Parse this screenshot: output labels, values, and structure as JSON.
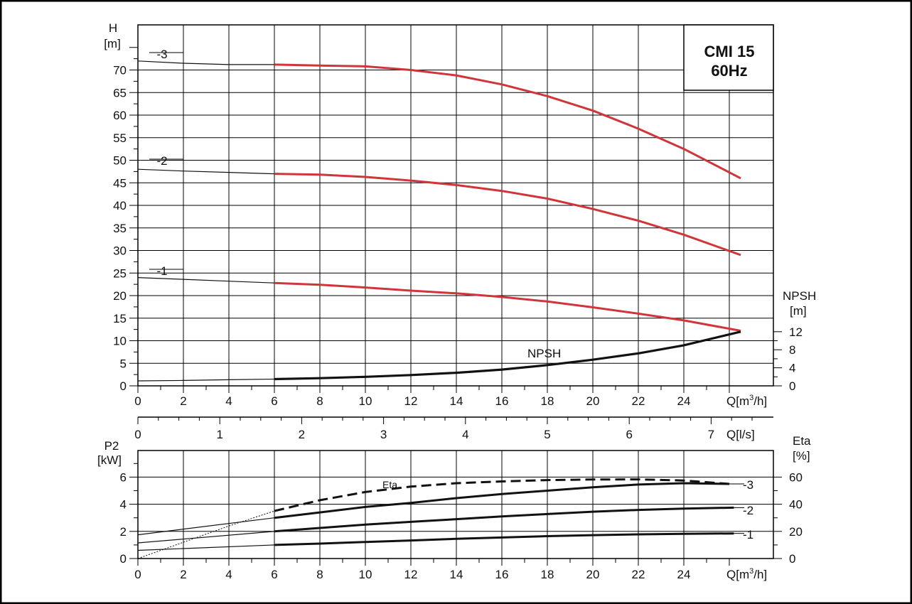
{
  "title_box": {
    "line1": "CMI 15",
    "line2": "60Hz"
  },
  "colors": {
    "head": "#d0353a",
    "ink": "#111111",
    "frame": "#000000"
  },
  "chart_data": [
    {
      "type": "line",
      "name": "head-npsh",
      "ylabel": "H",
      "yunit": "[m]",
      "xunit": "Q[m³/h]",
      "xlim": [
        0,
        26.5
      ],
      "ylim": [
        0,
        75
      ],
      "x_ticks": [
        0,
        2,
        4,
        6,
        8,
        10,
        12,
        14,
        16,
        18,
        20,
        22,
        24
      ],
      "y_ticks": [
        0,
        5,
        10,
        15,
        20,
        25,
        30,
        35,
        40,
        45,
        50,
        55,
        60,
        65,
        70
      ],
      "grid": true,
      "series": [
        {
          "name": "-3",
          "x": [
            6,
            8,
            10,
            12,
            14,
            16,
            18,
            20,
            22,
            24,
            26.5
          ],
          "values": [
            71.2,
            71.0,
            70.8,
            70.0,
            68.8,
            66.8,
            64.2,
            61.0,
            57.0,
            52.5,
            46.0
          ]
        },
        {
          "name": "-2",
          "x": [
            6,
            8,
            10,
            12,
            14,
            16,
            18,
            20,
            22,
            24,
            26.5
          ],
          "values": [
            47.0,
            46.8,
            46.3,
            45.5,
            44.5,
            43.2,
            41.5,
            39.2,
            36.6,
            33.5,
            29.0
          ]
        },
        {
          "name": "-1",
          "x": [
            6,
            8,
            10,
            12,
            14,
            16,
            18,
            20,
            22,
            24,
            26.5
          ],
          "values": [
            22.8,
            22.4,
            21.8,
            21.1,
            20.5,
            19.7,
            18.7,
            17.4,
            16.0,
            14.5,
            12.2
          ]
        }
      ],
      "extrapolated": {
        "-3": {
          "x": [
            0,
            2,
            4,
            6
          ],
          "values": [
            72.0,
            71.5,
            71.2,
            71.2
          ]
        },
        "-2": {
          "x": [
            0,
            2,
            4,
            6
          ],
          "values": [
            48.0,
            47.6,
            47.3,
            47.0
          ]
        },
        "-1": {
          "x": [
            0,
            2,
            4,
            6
          ],
          "values": [
            24.0,
            23.6,
            23.2,
            22.8
          ]
        }
      },
      "npsh": {
        "label": "NPSH",
        "axis_label": "NPSH",
        "axis_unit": "[m]",
        "axis_ticks": [
          0,
          4,
          8,
          12
        ],
        "x": [
          6,
          8,
          10,
          12,
          14,
          16,
          18,
          20,
          22,
          24,
          26.5
        ],
        "values": [
          1.5,
          1.7,
          2.0,
          2.4,
          2.9,
          3.6,
          4.6,
          5.8,
          7.2,
          9.0,
          12.0
        ],
        "extrapolated": {
          "x": [
            0,
            2,
            4,
            6
          ],
          "values": [
            1.1,
            1.2,
            1.35,
            1.5
          ]
        }
      },
      "series_tags": [
        "-3",
        "-2",
        "-1"
      ]
    },
    {
      "type": "axis",
      "name": "flow-litres",
      "xunit": "Q[l/s]",
      "x_ticks": [
        0,
        1,
        2,
        3,
        4,
        5,
        6,
        7
      ]
    },
    {
      "type": "line",
      "name": "power-efficiency",
      "ylabel": "P2",
      "yunit": "[kW]",
      "xunit": "Q[m³/h]",
      "xlim": [
        0,
        26.5
      ],
      "ylim": [
        0,
        7
      ],
      "x_ticks": [
        0,
        2,
        4,
        6,
        8,
        10,
        12,
        14,
        16,
        18,
        20,
        22,
        24
      ],
      "y_ticks": [
        0,
        2,
        4,
        6
      ],
      "grid": true,
      "series": [
        {
          "name": "-3",
          "x": [
            6,
            8,
            10,
            12,
            14,
            16,
            18,
            20,
            22,
            24,
            26
          ],
          "values": [
            3.0,
            3.4,
            3.8,
            4.1,
            4.45,
            4.75,
            5.0,
            5.25,
            5.45,
            5.55,
            5.5
          ]
        },
        {
          "name": "-2",
          "x": [
            6,
            8,
            10,
            12,
            14,
            16,
            18,
            20,
            22,
            24,
            26.2
          ],
          "values": [
            2.0,
            2.25,
            2.5,
            2.7,
            2.9,
            3.1,
            3.28,
            3.45,
            3.58,
            3.68,
            3.75
          ]
        },
        {
          "name": "-1",
          "x": [
            6,
            8,
            10,
            12,
            14,
            16,
            18,
            20,
            22,
            24,
            26.2
          ],
          "values": [
            1.0,
            1.1,
            1.22,
            1.33,
            1.45,
            1.55,
            1.65,
            1.72,
            1.78,
            1.82,
            1.85
          ]
        }
      ],
      "extrapolated": {
        "-3": {
          "x": [
            0,
            6
          ],
          "values": [
            1.75,
            3.0
          ]
        },
        "-2": {
          "x": [
            0,
            6
          ],
          "values": [
            1.15,
            2.0
          ]
        },
        "-1": {
          "x": [
            0,
            6
          ],
          "values": [
            0.6,
            1.0
          ]
        }
      },
      "efficiency": {
        "label": "Eta",
        "axis_label": "Eta",
        "axis_unit": "[%]",
        "axis_ticks": [
          0,
          20,
          40,
          60
        ],
        "x": [
          6,
          8,
          10,
          12,
          14,
          16,
          18,
          20,
          22,
          24,
          26
        ],
        "values": [
          35,
          43,
          49,
          53,
          55.5,
          56.8,
          57.8,
          58.2,
          58.3,
          57.5,
          55.0
        ],
        "extrapolated": {
          "x": [
            0,
            2,
            4,
            6
          ],
          "values": [
            0,
            12,
            24,
            35
          ]
        }
      },
      "series_tags": [
        "-3",
        "-2",
        "-1"
      ]
    }
  ]
}
